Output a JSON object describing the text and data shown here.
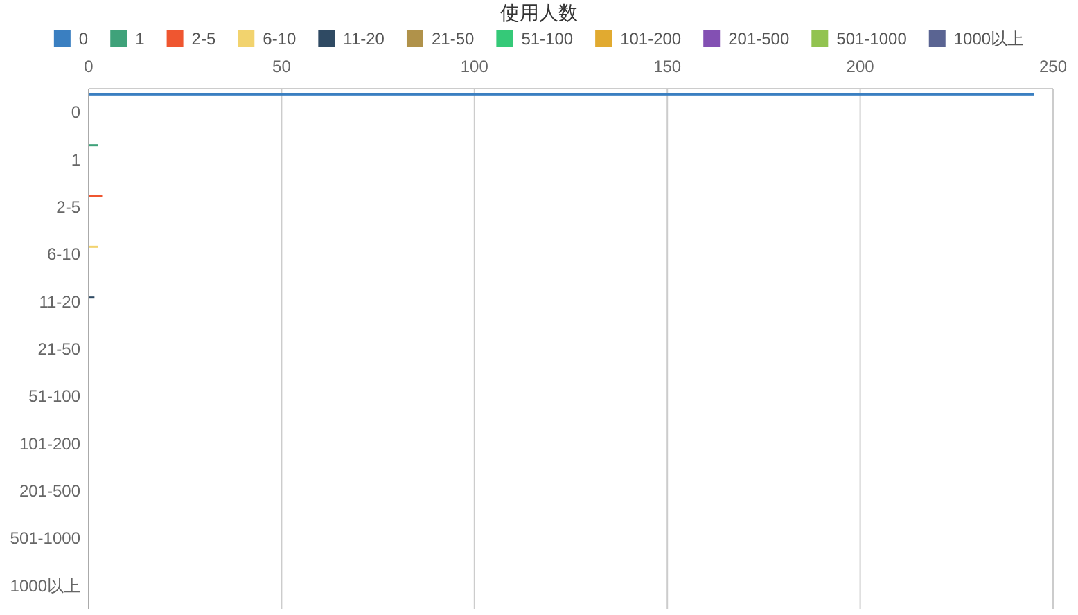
{
  "chart_data": {
    "type": "bar",
    "orientation": "horizontal",
    "title": "使用人数",
    "categories": [
      "0",
      "1",
      "2-5",
      "6-10",
      "11-20",
      "21-50",
      "51-100",
      "101-200",
      "201-500",
      "501-1000",
      "1000以上"
    ],
    "series": [
      {
        "name": "0",
        "color": "#3a7fc1",
        "values": [
          245,
          null,
          null,
          null,
          null,
          null,
          null,
          null,
          null,
          null,
          null
        ]
      },
      {
        "name": "1",
        "color": "#3fa27a",
        "values": [
          null,
          2.5,
          null,
          null,
          null,
          null,
          null,
          null,
          null,
          null,
          null
        ]
      },
      {
        "name": "2-5",
        "color": "#ef5630",
        "values": [
          null,
          null,
          3.5,
          null,
          null,
          null,
          null,
          null,
          null,
          null,
          null
        ]
      },
      {
        "name": "6-10",
        "color": "#f2d36e",
        "values": [
          null,
          null,
          null,
          2.5,
          null,
          null,
          null,
          null,
          null,
          null,
          null
        ]
      },
      {
        "name": "11-20",
        "color": "#2f4a63",
        "values": [
          null,
          null,
          null,
          null,
          1.5,
          null,
          null,
          null,
          null,
          null,
          null
        ]
      },
      {
        "name": "21-50",
        "color": "#b0924a",
        "values": [
          null,
          null,
          null,
          null,
          null,
          null,
          null,
          null,
          null,
          null,
          null
        ]
      },
      {
        "name": "51-100",
        "color": "#35c978",
        "values": [
          null,
          null,
          null,
          null,
          null,
          null,
          null,
          null,
          null,
          null,
          null
        ]
      },
      {
        "name": "101-200",
        "color": "#e1aa30",
        "values": [
          null,
          null,
          null,
          null,
          null,
          null,
          null,
          null,
          null,
          null,
          null
        ]
      },
      {
        "name": "201-500",
        "color": "#8350b3",
        "values": [
          null,
          null,
          null,
          null,
          null,
          null,
          null,
          null,
          null,
          null,
          null
        ]
      },
      {
        "name": "501-1000",
        "color": "#92c350",
        "values": [
          null,
          null,
          null,
          null,
          null,
          null,
          null,
          null,
          null,
          null,
          null
        ]
      },
      {
        "name": "1000以上",
        "color": "#5a6492",
        "values": [
          null,
          null,
          null,
          null,
          null,
          null,
          null,
          null,
          null,
          null,
          null
        ]
      }
    ],
    "xlim": [
      0,
      250
    ],
    "xticks": [
      0,
      50,
      100,
      150,
      200,
      250
    ],
    "grid": "x",
    "legend": "top"
  }
}
